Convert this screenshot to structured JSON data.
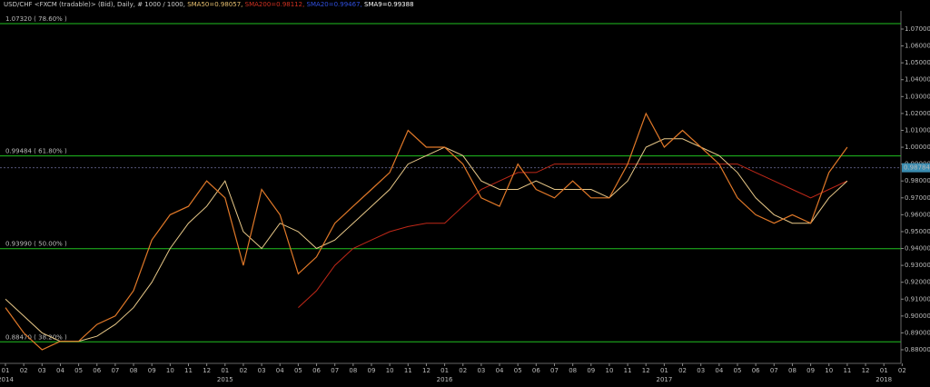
{
  "chart_data": {
    "type": "line",
    "title_parts": [
      {
        "text": "USD/CHF <FXCM (tradable)> (Bid), Daily, # 1000 / 1000, ",
        "color": "#cccccc"
      },
      {
        "text": "SMA50=0.98057, ",
        "color": "#e8c070"
      },
      {
        "text": "SMA200=0.98112, ",
        "color": "#d03020"
      },
      {
        "text": "SMA20=0.99467, ",
        "color": "#3050e0"
      },
      {
        "text": "SMA9=0.99388",
        "color": "#ffffff"
      }
    ],
    "categories": [
      "01",
      "02",
      "03",
      "04",
      "05",
      "06",
      "07",
      "08",
      "09",
      "10",
      "11",
      "12",
      "01",
      "02",
      "03",
      "04",
      "05",
      "06",
      "07",
      "08",
      "09",
      "10",
      "11",
      "12",
      "01",
      "02",
      "03",
      "04",
      "05",
      "06",
      "07",
      "08",
      "09",
      "10",
      "11",
      "12",
      "01",
      "02",
      "03",
      "04",
      "05",
      "06",
      "07",
      "08",
      "09",
      "10",
      "11",
      "12",
      "01",
      "02"
    ],
    "year_labels": [
      "2014",
      null,
      null,
      null,
      null,
      null,
      null,
      null,
      null,
      null,
      null,
      null,
      "2015",
      null,
      null,
      null,
      null,
      null,
      null,
      null,
      null,
      null,
      null,
      null,
      "2016",
      null,
      null,
      null,
      null,
      null,
      null,
      null,
      null,
      null,
      null,
      null,
      "2017",
      null,
      null,
      null,
      null,
      null,
      null,
      null,
      null,
      null,
      null,
      null,
      "2018",
      null
    ],
    "series": [
      {
        "name": "SMA200",
        "color": "#c02818",
        "values": [
          null,
          null,
          null,
          null,
          null,
          null,
          null,
          null,
          null,
          null,
          null,
          null,
          null,
          null,
          null,
          null,
          0.905,
          0.915,
          0.93,
          0.94,
          0.945,
          0.95,
          0.953,
          0.955,
          0.955,
          0.965,
          0.975,
          0.98,
          0.985,
          0.985,
          0.99,
          0.99,
          0.99,
          0.99,
          0.99,
          0.99,
          0.99,
          0.99,
          0.99,
          0.99,
          0.99,
          0.985,
          0.98,
          0.975,
          0.97,
          0.975,
          0.98,
          null,
          null,
          null
        ]
      },
      {
        "name": "SMA50",
        "color": "#e8c888",
        "values": [
          0.91,
          0.9,
          0.89,
          0.885,
          0.885,
          0.888,
          0.895,
          0.905,
          0.92,
          0.94,
          0.955,
          0.965,
          0.98,
          0.95,
          0.94,
          0.955,
          0.95,
          0.94,
          0.945,
          0.955,
          0.965,
          0.975,
          0.99,
          0.995,
          1.0,
          0.995,
          0.98,
          0.975,
          0.975,
          0.98,
          0.975,
          0.975,
          0.975,
          0.97,
          0.98,
          1.0,
          1.005,
          1.005,
          1.0,
          0.995,
          0.985,
          0.97,
          0.96,
          0.955,
          0.955,
          0.97,
          0.98,
          null,
          null,
          null
        ]
      },
      {
        "name": "USD/CHF",
        "color": "#e07828",
        "values": [
          0.905,
          0.89,
          0.88,
          0.885,
          0.885,
          0.895,
          0.9,
          0.915,
          0.945,
          0.96,
          0.965,
          0.98,
          0.97,
          0.93,
          0.975,
          0.96,
          0.925,
          0.935,
          0.955,
          0.965,
          0.975,
          0.985,
          1.01,
          1.0,
          1.0,
          0.99,
          0.97,
          0.965,
          0.99,
          0.975,
          0.97,
          0.98,
          0.97,
          0.97,
          0.99,
          1.02,
          1.0,
          1.01,
          1.0,
          0.99,
          0.97,
          0.96,
          0.955,
          0.96,
          0.955,
          0.985,
          1.0,
          null,
          null,
          null
        ]
      }
    ],
    "levels": [
      {
        "value": 1.0732,
        "label": "1.07320 ( 78.60% )"
      },
      {
        "value": 0.99484,
        "label": "0.99484 ( 61.80% )"
      },
      {
        "value": 0.9399,
        "label": "0.93990 ( 50.00% )"
      },
      {
        "value": 0.8847,
        "label": "0.88470 ( 38.20% )"
      }
    ],
    "level_color": "#20c020",
    "last_price": 0.98784,
    "ylim": [
      0.875,
      1.075
    ],
    "yticks": [
      {
        "value": 0.88,
        "label": "0.88000"
      },
      {
        "value": 0.89,
        "label": "0.89000"
      },
      {
        "value": 0.9,
        "label": "0.90000"
      },
      {
        "value": 0.91,
        "label": "0.91000"
      },
      {
        "value": 0.92,
        "label": "0.92000"
      },
      {
        "value": 0.93,
        "label": "0.93000"
      },
      {
        "value": 0.94,
        "label": "0.94000"
      },
      {
        "value": 0.95,
        "label": "0.95000"
      },
      {
        "value": 0.96,
        "label": "0.96000"
      },
      {
        "value": 0.97,
        "label": "0.97000"
      },
      {
        "value": 0.98,
        "label": "0.98000"
      },
      {
        "value": 0.99,
        "label": "0.99000"
      },
      {
        "value": 1.0,
        "label": "1.00000"
      },
      {
        "value": 1.01,
        "label": "1.01000"
      },
      {
        "value": 1.02,
        "label": "1.02000"
      },
      {
        "value": 1.03,
        "label": "1.03000"
      },
      {
        "value": 1.04,
        "label": "1.04000"
      },
      {
        "value": 1.05,
        "label": "1.05000"
      },
      {
        "value": 1.06,
        "label": "1.06000"
      },
      {
        "value": 1.07,
        "label": "1.07000"
      }
    ]
  }
}
